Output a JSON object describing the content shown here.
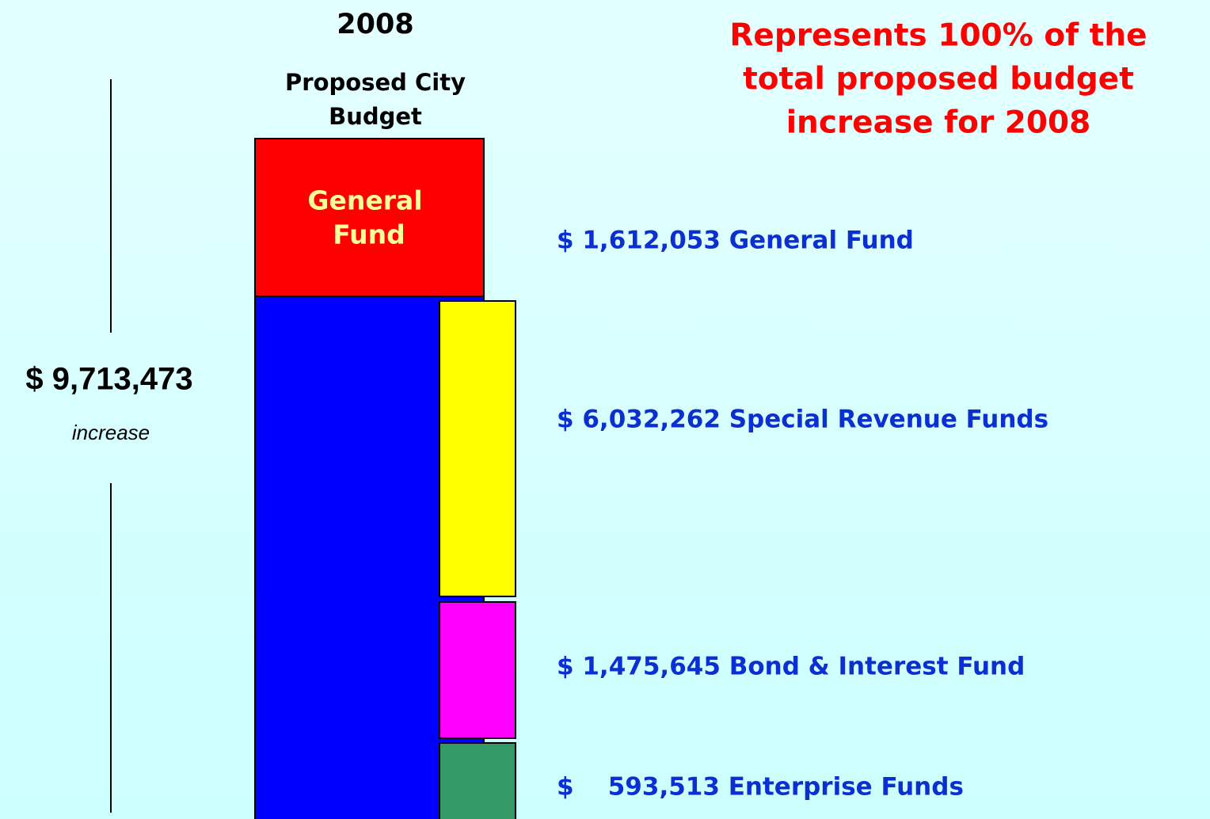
{
  "year": "2008",
  "column_title": [
    "Proposed City",
    "Budget"
  ],
  "headline": [
    "Represents 100% of the",
    "total proposed budget",
    "increase for 2008"
  ],
  "box_label": [
    "General",
    "Fund"
  ],
  "total": {
    "amount": "$ 9,713,473",
    "note": "increase"
  },
  "funds": [
    "$ 1,612,053 General Fund",
    "$ 6,032,262 Special Revenue Funds",
    "$ 1,475,645 Bond & Interest Fund",
    "$    593,513 Enterprise Funds"
  ]
}
